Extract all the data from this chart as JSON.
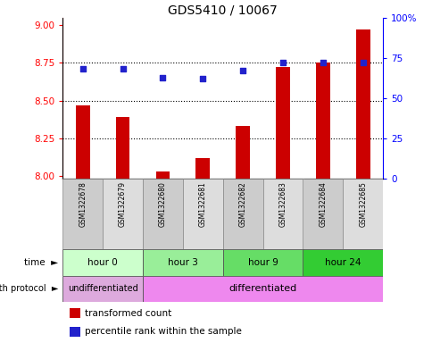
{
  "title": "GDS5410 / 10067",
  "samples": [
    "GSM1322678",
    "GSM1322679",
    "GSM1322680",
    "GSM1322681",
    "GSM1322682",
    "GSM1322683",
    "GSM1322684",
    "GSM1322685"
  ],
  "transformed_counts": [
    8.47,
    8.39,
    8.03,
    8.12,
    8.33,
    8.72,
    8.75,
    8.97
  ],
  "percentile_ranks": [
    68,
    68,
    63,
    62,
    67,
    72,
    72,
    72
  ],
  "bar_color": "#cc0000",
  "dot_color": "#2222cc",
  "ylim_left": [
    7.98,
    9.05
  ],
  "ylim_right": [
    0,
    100
  ],
  "yticks_left": [
    8.0,
    8.25,
    8.5,
    8.75,
    9.0
  ],
  "yticks_right": [
    0,
    25,
    50,
    75,
    100
  ],
  "time_groups": [
    {
      "label": "hour 0",
      "start": 0,
      "end": 2,
      "color": "#ccffcc"
    },
    {
      "label": "hour 3",
      "start": 2,
      "end": 4,
      "color": "#99ee99"
    },
    {
      "label": "hour 9",
      "start": 4,
      "end": 6,
      "color": "#66dd66"
    },
    {
      "label": "hour 24",
      "start": 6,
      "end": 8,
      "color": "#33cc33"
    }
  ],
  "growth_groups": [
    {
      "label": "undifferentiated",
      "start": 0,
      "end": 2,
      "color": "#ddaadd"
    },
    {
      "label": "differentiated",
      "start": 2,
      "end": 8,
      "color": "#ee88ee"
    }
  ],
  "sample_colors": [
    "#cccccc",
    "#dddddd",
    "#cccccc",
    "#dddddd",
    "#cccccc",
    "#dddddd",
    "#cccccc",
    "#dddddd"
  ],
  "legend_items": [
    {
      "label": "transformed count",
      "color": "#cc0000"
    },
    {
      "label": "percentile rank within the sample",
      "color": "#2222cc"
    }
  ],
  "background_color": "#ffffff"
}
